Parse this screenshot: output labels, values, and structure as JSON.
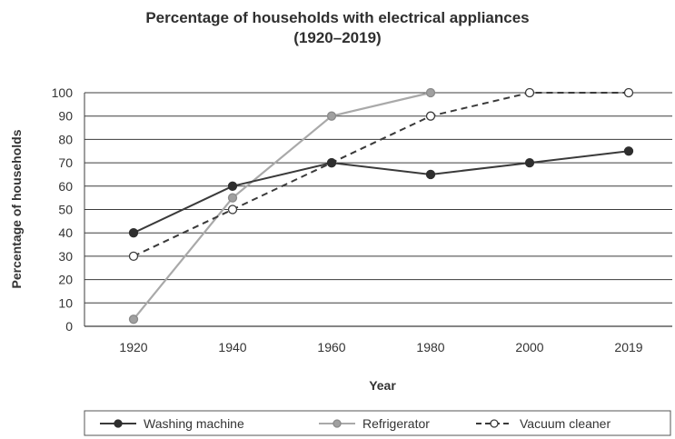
{
  "chart_data": {
    "type": "line",
    "title": "Percentage of households with electrical appliances",
    "subtitle": "(1920–2019)",
    "xlabel": "Year",
    "ylabel": "Percentage of households",
    "categories": [
      "1920",
      "1940",
      "1960",
      "1980",
      "2000",
      "2019"
    ],
    "ylim": [
      0,
      100
    ],
    "yticks": [
      0,
      10,
      20,
      30,
      40,
      50,
      60,
      70,
      80,
      90,
      100
    ],
    "grid": true,
    "legend_position": "bottom",
    "series": [
      {
        "name": "Washing machine",
        "values": [
          40,
          60,
          70,
          65,
          70,
          75
        ],
        "color": "#3a3a3a",
        "line_style": "solid",
        "marker": "filled-circle"
      },
      {
        "name": "Refrigerator",
        "values": [
          3,
          55,
          90,
          100,
          null,
          null
        ],
        "color": "#a9a9a9",
        "line_style": "solid",
        "marker": "gray-circle"
      },
      {
        "name": "Vacuum cleaner",
        "values": [
          30,
          50,
          70,
          90,
          100,
          100
        ],
        "color": "#3a3a3a",
        "line_style": "dashed",
        "marker": "hollow-circle"
      }
    ]
  }
}
